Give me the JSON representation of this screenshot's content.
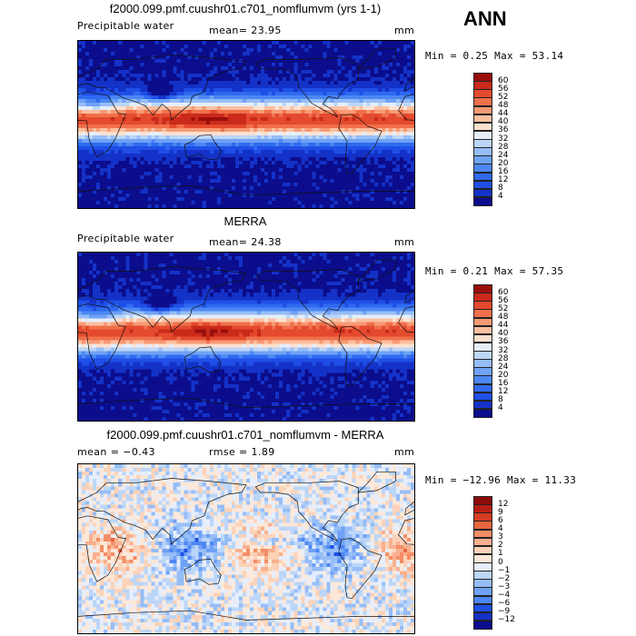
{
  "season": "ANN",
  "panels": [
    {
      "title": "f2000.099.pmf.cuushr01.c701_nomflumvm (yrs 1-1)",
      "left_label": "Precipitable water",
      "stat_text": "mean=  23.95",
      "units": "mm",
      "minmax": "Min =   0.25 Max =  53.14",
      "kind": "field"
    },
    {
      "title": "MERRA",
      "left_label": "Precipitable water",
      "stat_text": "mean=  24.38",
      "units": "mm",
      "minmax": "Min =   0.21 Max =  57.35",
      "kind": "field"
    },
    {
      "title": "f2000.099.pmf.cuushr01.c701_nomflumvm - MERRA",
      "left_label": "mean =  −0.43",
      "stat_text": "rmse =   1.89",
      "units": "mm",
      "minmax": "Min = −12.96 Max =  11.33",
      "kind": "diff"
    }
  ],
  "chart_data": [
    {
      "type": "heatmap",
      "title": "f2000.099.pmf.cuushr01.c701_nomflumvm (yrs 1-1)",
      "subtitle": "Precipitable water",
      "units": "mm",
      "mean": 23.95,
      "min": 0.25,
      "max": 53.14,
      "colorbar_levels": [
        4,
        8,
        12,
        16,
        20,
        24,
        28,
        32,
        36,
        40,
        44,
        48,
        52,
        56,
        60
      ],
      "colorbar_colors": [
        "#0b0d8c",
        "#1432c8",
        "#1f4fe6",
        "#2f6af0",
        "#4d87f3",
        "#6fa2f5",
        "#96bdf7",
        "#bcd6f8",
        "#e6eefb",
        "#fde0cf",
        "#fbbf9f",
        "#f79a74",
        "#f0704c",
        "#e44a2e",
        "#c92a1a",
        "#9a0f0c"
      ]
    },
    {
      "type": "heatmap",
      "title": "MERRA",
      "subtitle": "Precipitable water",
      "units": "mm",
      "mean": 24.38,
      "min": 0.21,
      "max": 57.35,
      "colorbar_levels": [
        4,
        8,
        12,
        16,
        20,
        24,
        28,
        32,
        36,
        40,
        44,
        48,
        52,
        56,
        60
      ],
      "colorbar_colors": [
        "#0b0d8c",
        "#1432c8",
        "#1f4fe6",
        "#2f6af0",
        "#4d87f3",
        "#6fa2f5",
        "#96bdf7",
        "#bcd6f8",
        "#e6eefb",
        "#fde0cf",
        "#fbbf9f",
        "#f79a74",
        "#f0704c",
        "#e44a2e",
        "#c92a1a",
        "#9a0f0c"
      ]
    },
    {
      "type": "heatmap",
      "title": "f2000.099.pmf.cuushr01.c701_nomflumvm - MERRA",
      "units": "mm",
      "mean": -0.43,
      "rmse": 1.89,
      "min": -12.96,
      "max": 11.33,
      "colorbar_levels": [
        "−12",
        "−9",
        "−6",
        "−4",
        "−3",
        "−2",
        "−1",
        "0",
        "1",
        "2",
        "3",
        "4",
        "6",
        "9",
        "12"
      ],
      "colorbar_colors": [
        "#0b0d8c",
        "#1432c8",
        "#1f4fe6",
        "#4d87f3",
        "#6fa2f5",
        "#96bdf7",
        "#bcd6f8",
        "#e6eefb",
        "#fde8d9",
        "#fcd2b8",
        "#f9b08e",
        "#f38d66",
        "#e8653e",
        "#d63c22",
        "#b81e14",
        "#8c0b0b"
      ]
    }
  ]
}
